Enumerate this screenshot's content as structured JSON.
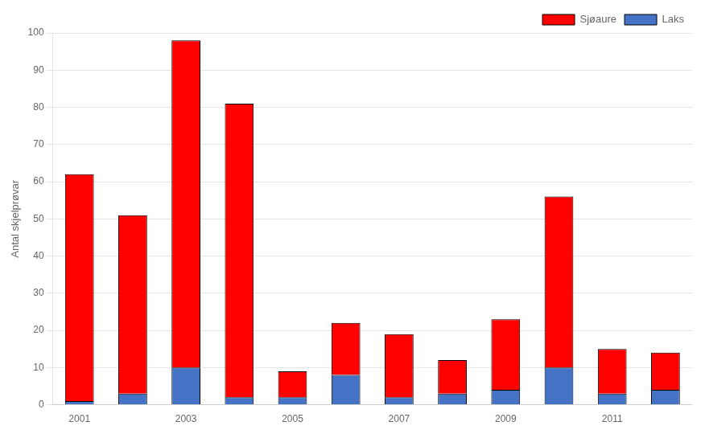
{
  "chart_data": {
    "type": "bar",
    "stacked": true,
    "categories": [
      "2001",
      null,
      "2003",
      null,
      "2005",
      null,
      "2007",
      null,
      "2009",
      null,
      "2011",
      null
    ],
    "series": [
      {
        "name": "Laks",
        "color": "#4472C4",
        "values": [
          1,
          3,
          10,
          2,
          2,
          8,
          2,
          3,
          4,
          10,
          3,
          4
        ]
      },
      {
        "name": "Sjøaure",
        "color": "#FF0000",
        "values": [
          61,
          48,
          88,
          79,
          7,
          14,
          17,
          9,
          19,
          46,
          12,
          10
        ]
      }
    ],
    "ylabel": "Antal skjelprøvar",
    "ylim": [
      0,
      100
    ],
    "yticks": [
      0,
      10,
      20,
      30,
      40,
      50,
      60,
      70,
      80,
      90,
      100
    ],
    "grid": true,
    "legend": "upper right"
  }
}
